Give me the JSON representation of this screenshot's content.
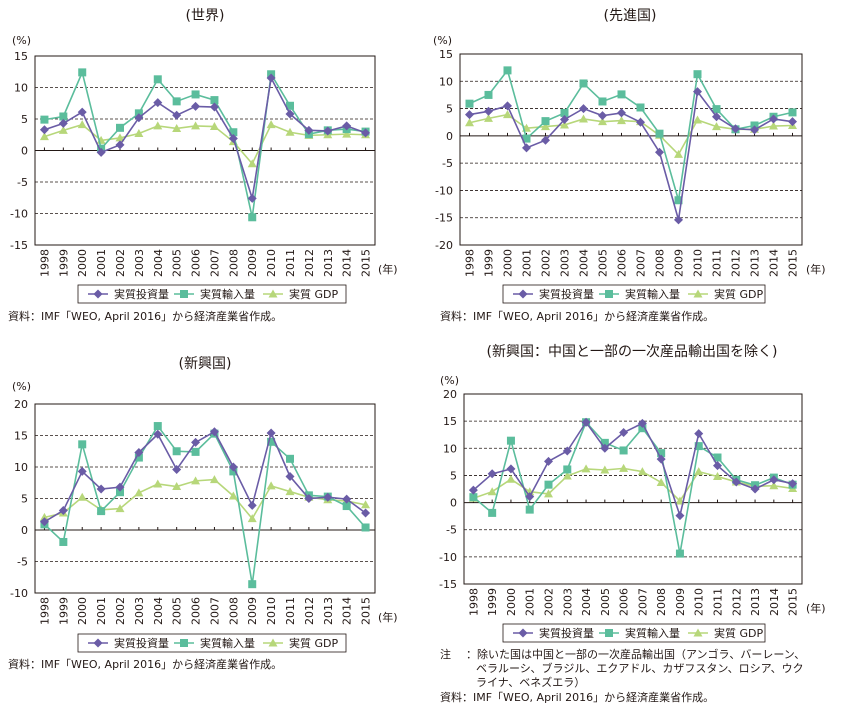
{
  "legend": {
    "investment": "実質投資量",
    "imports": "実質輸入量",
    "gdp": "実質 GDP"
  },
  "source_text": "資料：IMF「WEO, April 2016」から経済産業省作成。",
  "unit_label": "(%)",
  "year_suffix": "(年)",
  "note": {
    "prefix": "注",
    "lines": [
      "：除いた国は中国と一部の一次産品輸出国（アンゴラ、バーレーン、",
      "ベラルーシ、ブラジル、エクアドル、カザフスタン、ロシア、ウク",
      "ライナ、ベネズエラ）"
    ]
  },
  "colors": {
    "investment": "#6a5ca6",
    "imports": "#5bbd9c",
    "gdp": "#b7d77a",
    "axis": "#231815",
    "grid": "#231815"
  },
  "chart_data": [
    {
      "type": "line",
      "title": "(世界)",
      "x": [
        "1998",
        "1999",
        "2000",
        "2001",
        "2002",
        "2003",
        "2004",
        "2005",
        "2006",
        "2007",
        "2008",
        "2009",
        "2010",
        "2011",
        "2012",
        "2013",
        "2014",
        "2015"
      ],
      "ylim": [
        -15,
        15
      ],
      "yticks": [
        -15,
        -10,
        -5,
        0,
        5,
        10,
        15
      ],
      "grid": true,
      "legend_position": "bottom",
      "series": [
        {
          "name": "実質投資量",
          "values": [
            3.3,
            4.3,
            6.1,
            -0.3,
            0.9,
            5.2,
            7.6,
            5.6,
            7.0,
            6.9,
            1.9,
            -7.6,
            11.5,
            5.8,
            3.2,
            3.1,
            3.9,
            2.8
          ]
        },
        {
          "name": "実質輸入量",
          "values": [
            4.9,
            5.4,
            12.4,
            0.3,
            3.6,
            5.9,
            11.3,
            7.8,
            8.9,
            8.0,
            2.9,
            -10.6,
            12.1,
            7.1,
            2.6,
            3.2,
            3.4,
            3.0
          ]
        },
        {
          "name": "実質 GDP",
          "values": [
            2.2,
            3.2,
            4.1,
            1.6,
            2.0,
            2.7,
            3.9,
            3.5,
            3.9,
            3.8,
            1.4,
            -2.1,
            4.1,
            2.9,
            2.4,
            2.5,
            2.6,
            2.5
          ]
        }
      ]
    },
    {
      "type": "line",
      "title": "(先進国)",
      "x": [
        "1998",
        "1999",
        "2000",
        "2001",
        "2002",
        "2003",
        "2004",
        "2005",
        "2006",
        "2007",
        "2008",
        "2009",
        "2010",
        "2011",
        "2012",
        "2013",
        "2014",
        "2015"
      ],
      "ylim": [
        -20,
        15
      ],
      "yticks": [
        -20,
        -15,
        -10,
        -5,
        0,
        5,
        10,
        15
      ],
      "grid": true,
      "legend_position": "bottom",
      "series": [
        {
          "name": "実質投資量",
          "values": [
            3.9,
            4.5,
            5.5,
            -2.2,
            -0.8,
            3.0,
            5.0,
            3.7,
            4.2,
            2.5,
            -3.0,
            -15.4,
            8.1,
            3.5,
            1.3,
            1.1,
            3.1,
            2.6
          ]
        },
        {
          "name": "実質輸入量",
          "values": [
            5.9,
            7.5,
            12.0,
            -0.5,
            2.7,
            4.2,
            9.6,
            6.3,
            7.6,
            5.2,
            0.4,
            -11.8,
            11.3,
            4.9,
            1.2,
            1.9,
            3.5,
            4.3
          ]
        },
        {
          "name": "実質 GDP",
          "values": [
            2.4,
            3.2,
            3.9,
            1.4,
            1.7,
            2.0,
            3.1,
            2.6,
            2.8,
            2.6,
            0.1,
            -3.4,
            2.9,
            1.7,
            1.2,
            1.2,
            1.8,
            1.9
          ]
        }
      ]
    },
    {
      "type": "line",
      "title": "(新興国)",
      "x": [
        "1998",
        "1999",
        "2000",
        "2001",
        "2002",
        "2003",
        "2004",
        "2005",
        "2006",
        "2007",
        "2008",
        "2009",
        "2010",
        "2011",
        "2012",
        "2013",
        "2014",
        "2015"
      ],
      "ylim": [
        -10,
        20
      ],
      "yticks": [
        -10,
        -5,
        0,
        5,
        10,
        15,
        20
      ],
      "grid": true,
      "legend_position": "bottom",
      "series": [
        {
          "name": "実質投資量",
          "values": [
            1.3,
            3.1,
            9.3,
            6.5,
            6.8,
            12.3,
            15.2,
            9.6,
            13.9,
            15.6,
            10.0,
            3.9,
            15.4,
            8.5,
            5.0,
            5.2,
            4.9,
            2.7
          ]
        },
        {
          "name": "実質輸入量",
          "values": [
            0.9,
            -1.9,
            13.6,
            3.0,
            6.0,
            11.5,
            16.5,
            12.5,
            12.4,
            15.3,
            9.3,
            -8.6,
            14.0,
            11.3,
            5.5,
            5.3,
            3.8,
            0.4
          ]
        },
        {
          "name": "実質 GDP",
          "values": [
            2.0,
            2.7,
            5.2,
            3.2,
            3.4,
            5.9,
            7.3,
            6.9,
            7.8,
            8.0,
            5.4,
            1.8,
            7.0,
            6.1,
            5.2,
            4.8,
            4.6,
            4.0
          ]
        }
      ]
    },
    {
      "type": "line",
      "title": "(新興国：中国と一部の一次産品輸出国を除く)",
      "x": [
        "1998",
        "1999",
        "2000",
        "2001",
        "2002",
        "2003",
        "2004",
        "2005",
        "2006",
        "2007",
        "2008",
        "2009",
        "2010",
        "2011",
        "2012",
        "2013",
        "2014",
        "2015"
      ],
      "ylim": [
        -15,
        20
      ],
      "yticks": [
        -15,
        -10,
        -5,
        0,
        5,
        10,
        15,
        20
      ],
      "grid": true,
      "legend_position": "bottom",
      "series": [
        {
          "name": "実質投資量",
          "values": [
            2.3,
            5.3,
            6.2,
            1.1,
            7.6,
            9.5,
            14.8,
            10.0,
            12.9,
            14.6,
            8.0,
            -2.4,
            12.7,
            6.8,
            3.8,
            2.5,
            4.2,
            3.5
          ]
        },
        {
          "name": "実質輸入量",
          "values": [
            1.0,
            -1.9,
            11.4,
            -1.3,
            3.3,
            6.1,
            14.8,
            11.0,
            9.6,
            13.7,
            9.1,
            -9.4,
            10.4,
            8.3,
            4.2,
            3.2,
            4.6,
            3.3
          ]
        },
        {
          "name": "実質 GDP",
          "values": [
            0.8,
            2.0,
            4.3,
            2.0,
            1.6,
            4.9,
            6.2,
            6.0,
            6.3,
            5.7,
            3.7,
            0.3,
            5.7,
            4.8,
            3.8,
            3.0,
            3.1,
            2.6
          ]
        }
      ]
    }
  ]
}
